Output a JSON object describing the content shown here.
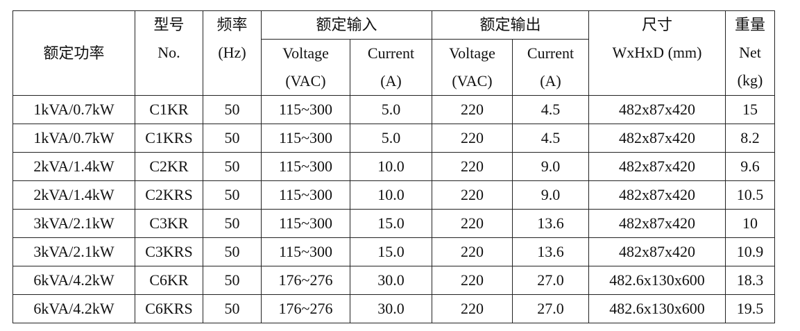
{
  "header": {
    "power": "额定功率",
    "model": [
      "型号",
      "No."
    ],
    "frequency": [
      "频率",
      "(Hz)"
    ],
    "input": {
      "title": "额定输入",
      "voltage": [
        "Voltage",
        "(VAC)"
      ],
      "current": [
        "Current",
        "(A)"
      ]
    },
    "output": {
      "title": "额定输出",
      "voltage": [
        "Voltage",
        "(VAC)"
      ],
      "current": [
        "Current",
        "(A)"
      ]
    },
    "size": [
      "尺寸",
      "WxHxD (mm)"
    ],
    "weight": [
      "重量",
      "Net",
      "(kg)"
    ]
  },
  "table": {
    "rows": [
      [
        "1kVA/0.7kW",
        "C1KR",
        "50",
        "115~300",
        "5.0",
        "220",
        "4.5",
        "482x87x420",
        "15"
      ],
      [
        "1kVA/0.7kW",
        "C1KRS",
        "50",
        "115~300",
        "5.0",
        "220",
        "4.5",
        "482x87x420",
        "8.2"
      ],
      [
        "2kVA/1.4kW",
        "C2KR",
        "50",
        "115~300",
        "10.0",
        "220",
        "9.0",
        "482x87x420",
        "9.6"
      ],
      [
        "2kVA/1.4kW",
        "C2KRS",
        "50",
        "115~300",
        "10.0",
        "220",
        "9.0",
        "482x87x420",
        "10.5"
      ],
      [
        "3kVA/2.1kW",
        "C3KR",
        "50",
        "115~300",
        "15.0",
        "220",
        "13.6",
        "482x87x420",
        "10"
      ],
      [
        "3kVA/2.1kW",
        "C3KRS",
        "50",
        "115~300",
        "15.0",
        "220",
        "13.6",
        "482x87x420",
        "10.9"
      ],
      [
        "6kVA/4.2kW",
        "C6KR",
        "50",
        "176~276",
        "30.0",
        "220",
        "27.0",
        "482.6x130x600",
        "18.3"
      ],
      [
        "6kVA/4.2kW",
        "C6KRS",
        "50",
        "176~276",
        "30.0",
        "220",
        "27.0",
        "482.6x130x600",
        "19.5"
      ]
    ]
  }
}
